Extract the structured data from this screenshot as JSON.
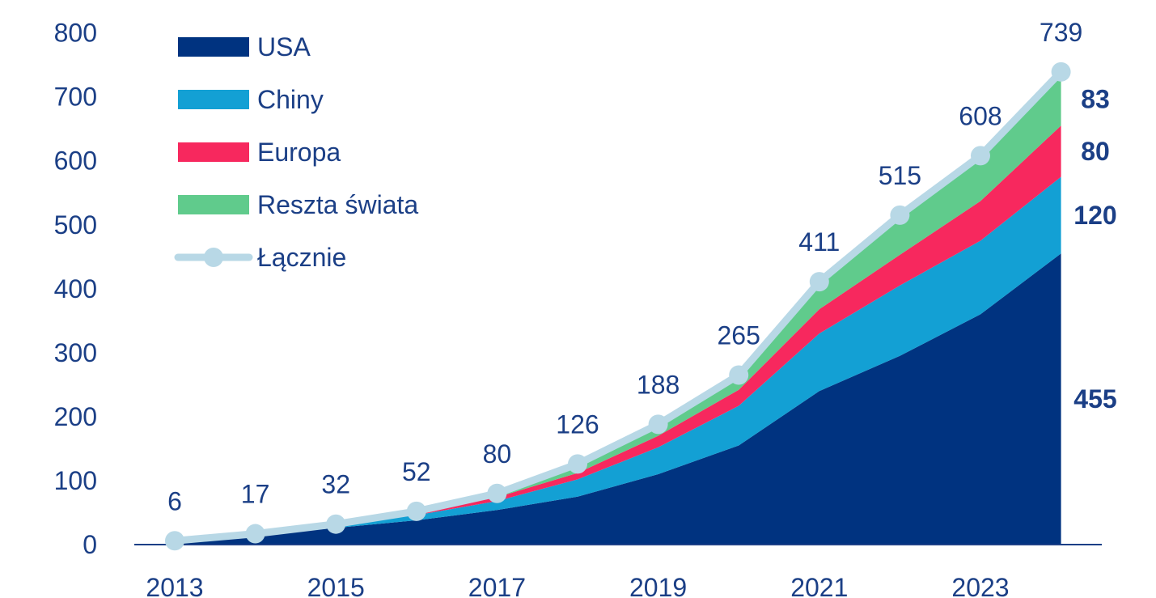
{
  "chart_data": {
    "type": "area",
    "title": "",
    "xlabel": "",
    "ylabel": "",
    "x": [
      2013,
      2014,
      2015,
      2016,
      2017,
      2018,
      2019,
      2020,
      2021,
      2022,
      2023,
      2024
    ],
    "x_tick_labels": [
      "2013",
      "2015",
      "2017",
      "2019",
      "2021",
      "2023"
    ],
    "y_ticks": [
      0,
      100,
      200,
      300,
      400,
      500,
      600,
      700,
      800
    ],
    "ylim": [
      0,
      800
    ],
    "stacked": true,
    "legend_position": "top-left",
    "series": [
      {
        "name": "USA",
        "color": "#003380",
        "values": [
          5,
          14,
          26,
          38,
          54,
          75,
          110,
          155,
          240,
          295,
          360,
          455
        ]
      },
      {
        "name": "Chiny",
        "color": "#13a0d4",
        "values": [
          1,
          2,
          4,
          8,
          14,
          27,
          42,
          62,
          90,
          110,
          115,
          120
        ]
      },
      {
        "name": "Europa",
        "color": "#f7285e",
        "values": [
          0,
          1,
          1,
          3,
          6,
          10,
          18,
          25,
          38,
          48,
          62,
          80
        ]
      },
      {
        "name": "Reszta świata",
        "color": "#60cb8c",
        "values": [
          0,
          0,
          1,
          3,
          6,
          14,
          18,
          23,
          43,
          62,
          71,
          83
        ]
      }
    ],
    "total": {
      "name": "Łącznie",
      "color": "#b8d8e6",
      "values": [
        6,
        17,
        32,
        52,
        80,
        126,
        188,
        265,
        411,
        515,
        608,
        739
      ],
      "labels": [
        "6",
        "17",
        "32",
        "52",
        "80",
        "126",
        "188",
        "265",
        "411",
        "515",
        "608",
        "739"
      ]
    },
    "end_labels": [
      "455",
      "120",
      "80",
      "83"
    ]
  }
}
